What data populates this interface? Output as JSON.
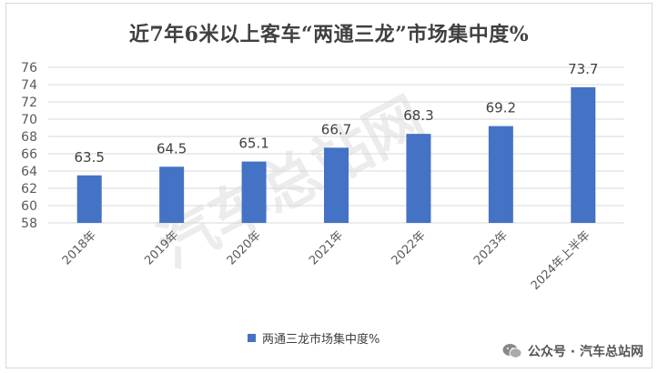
{
  "chart_data": {
    "type": "bar",
    "title": "近7年6米以上客车“两通三龙”市场集中度%",
    "categories": [
      "2018年",
      "2019年",
      "2020年",
      "2021年",
      "2022年",
      "2023年",
      "2024年上半年"
    ],
    "series": [
      {
        "name": "两通三龙市场集中度%",
        "values": [
          63.5,
          64.5,
          65.1,
          66.7,
          68.3,
          69.2,
          73.7
        ]
      }
    ],
    "ylim": [
      58,
      76
    ],
    "yticks": [
      58,
      60,
      62,
      64,
      66,
      68,
      70,
      72,
      74,
      76
    ],
    "grid": true,
    "legend_position": "bottom",
    "bar_color": "#4472c4"
  },
  "watermark": {
    "text": "公众号 · 汽车总站网",
    "background_text": "汽车总站网"
  }
}
